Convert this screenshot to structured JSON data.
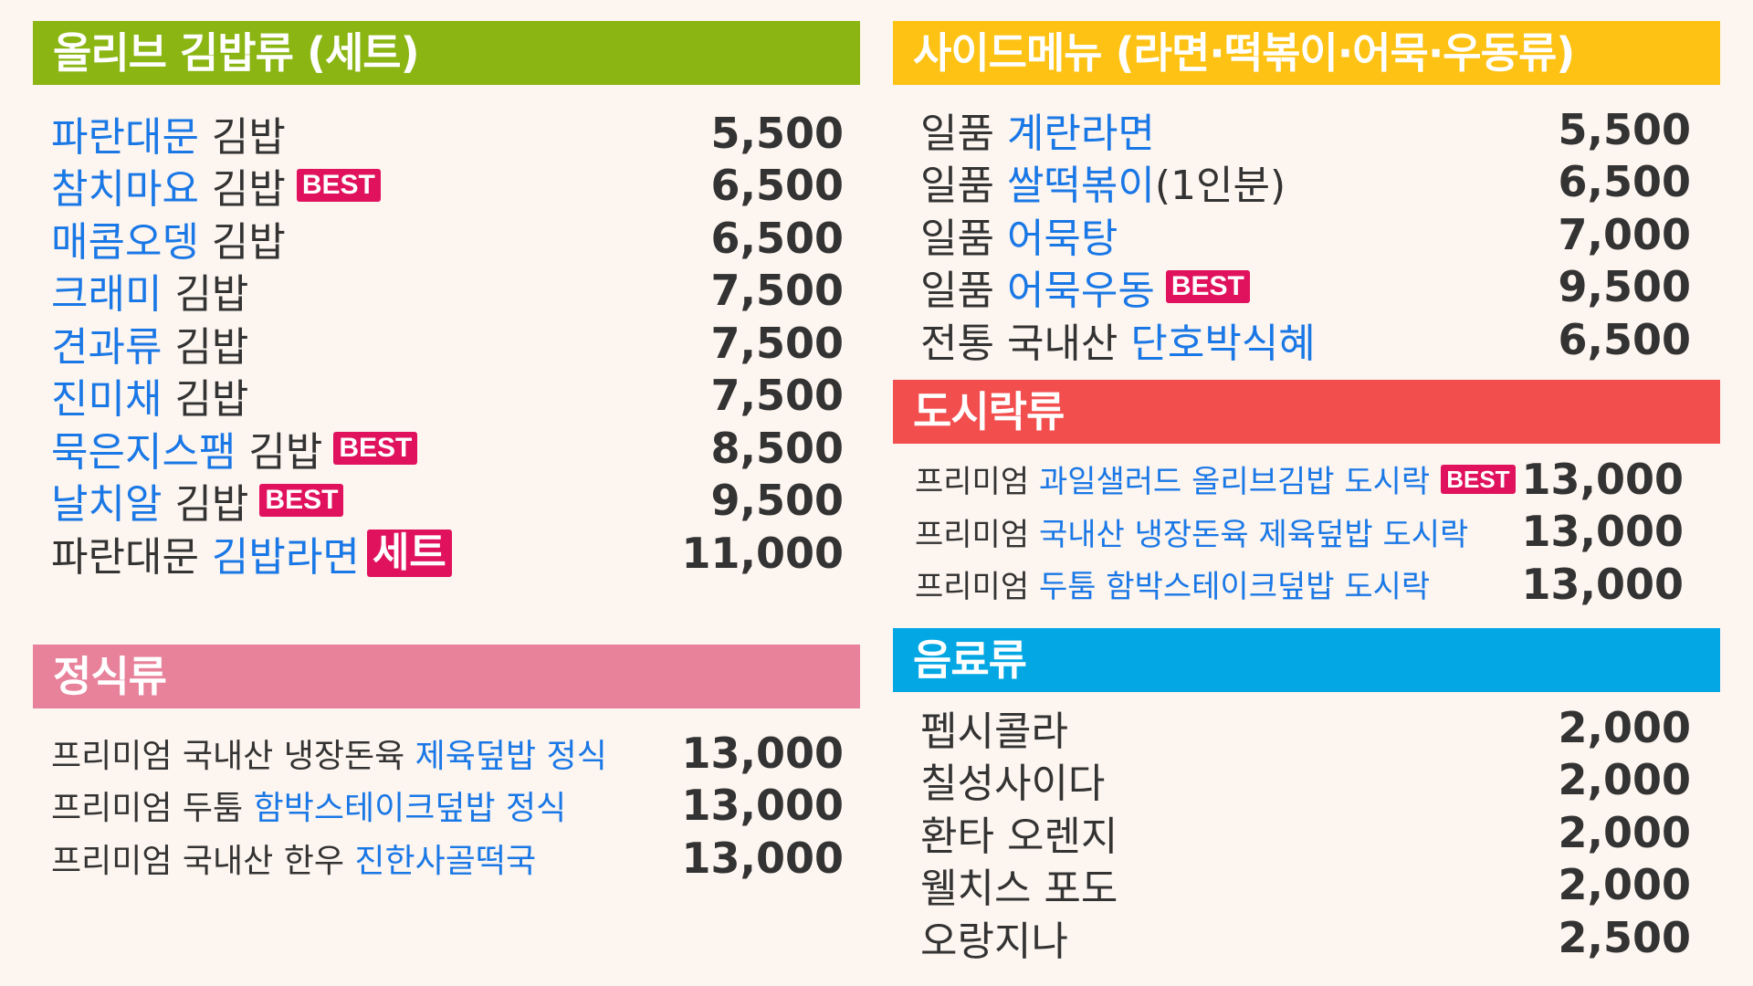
{
  "colors": {
    "background": "#fdf5ef",
    "green": "#8ab513",
    "yellow": "#fdc214",
    "pink": "#e8829b",
    "red": "#f24e4e",
    "cyan": "#02a7e3",
    "blue_text": "#1a78e6",
    "best_badge": "#e0125d"
  },
  "kimbap": {
    "title": "올리브 김밥류 (세트)",
    "items": [
      {
        "hl": "파란대문",
        "rest": " 김밥",
        "best": "",
        "price": "5,500"
      },
      {
        "hl": "참치마요",
        "rest": " 김밥",
        "best": "BEST",
        "price": "6,500"
      },
      {
        "hl": "매콤오뎅",
        "rest": " 김밥",
        "best": "",
        "price": "6,500"
      },
      {
        "hl": "크래미",
        "rest": " 김밥",
        "best": "",
        "price": "7,500"
      },
      {
        "hl": "견과류",
        "rest": " 김밥",
        "best": "",
        "price": "7,500"
      },
      {
        "hl": "진미채",
        "rest": " 김밥",
        "best": "",
        "price": "7,500"
      },
      {
        "hl": "묵은지스팸",
        "rest": " 김밥",
        "best": "BEST",
        "price": "8,500"
      },
      {
        "hl": "날치알",
        "rest": " 김밥",
        "best": "BEST",
        "price": "9,500"
      }
    ],
    "set_item": {
      "pre": "파란대문 ",
      "hl": "김밥라면",
      "box": "세트",
      "price": "11,000"
    }
  },
  "jeongsik": {
    "title": "정식류",
    "items": [
      {
        "pre": "프리미엄 국내산 냉장돈육 ",
        "hl": "제육덮밥 정식",
        "price": "13,000"
      },
      {
        "pre": "프리미엄 두툼 ",
        "hl": "함박스테이크덮밥 정식",
        "price": "13,000"
      },
      {
        "pre": "프리미엄 국내산 한우 ",
        "hl": "진한사골떡국",
        "price": "13,000"
      }
    ]
  },
  "side": {
    "title": "사이드메뉴 (라면·떡볶이·어묵·우동류)",
    "items": [
      {
        "pre": "일품 ",
        "hl": "계란라면",
        "post": "",
        "best": "",
        "price": "5,500"
      },
      {
        "pre": "일품 ",
        "hl": "쌀떡볶이",
        "post": "(1인분)",
        "best": "",
        "price": "6,500"
      },
      {
        "pre": "일품 ",
        "hl": "어묵탕",
        "post": "",
        "best": "",
        "price": "7,000"
      },
      {
        "pre": "일품 ",
        "hl": "어묵우동",
        "post": "",
        "best": "BEST",
        "price": "9,500"
      },
      {
        "pre": "전통 국내산 ",
        "hl": "단호박식혜",
        "post": "",
        "best": "",
        "price": "6,500"
      }
    ]
  },
  "dosirak": {
    "title": "도시락류",
    "items": [
      {
        "pre": "프리미엄 ",
        "hl": "과일샐러드 올리브김밥 도시락",
        "best": "BEST",
        "price": "13,000"
      },
      {
        "pre": "프리미엄 ",
        "hl": "국내산 냉장돈육 제육덮밥 도시락",
        "best": "",
        "price": "13,000"
      },
      {
        "pre": "프리미엄 ",
        "hl": "두툼 함박스테이크덮밥 도시락",
        "best": "",
        "price": "13,000"
      }
    ]
  },
  "drinks": {
    "title": "음료류",
    "items": [
      {
        "name": "펩시콜라",
        "price": "2,000"
      },
      {
        "name": "칠성사이다",
        "price": "2,000"
      },
      {
        "name": "환타 오렌지",
        "price": "2,000"
      },
      {
        "name": "웰치스 포도",
        "price": "2,000"
      },
      {
        "name": "오랑지나",
        "price": "2,500"
      }
    ]
  }
}
